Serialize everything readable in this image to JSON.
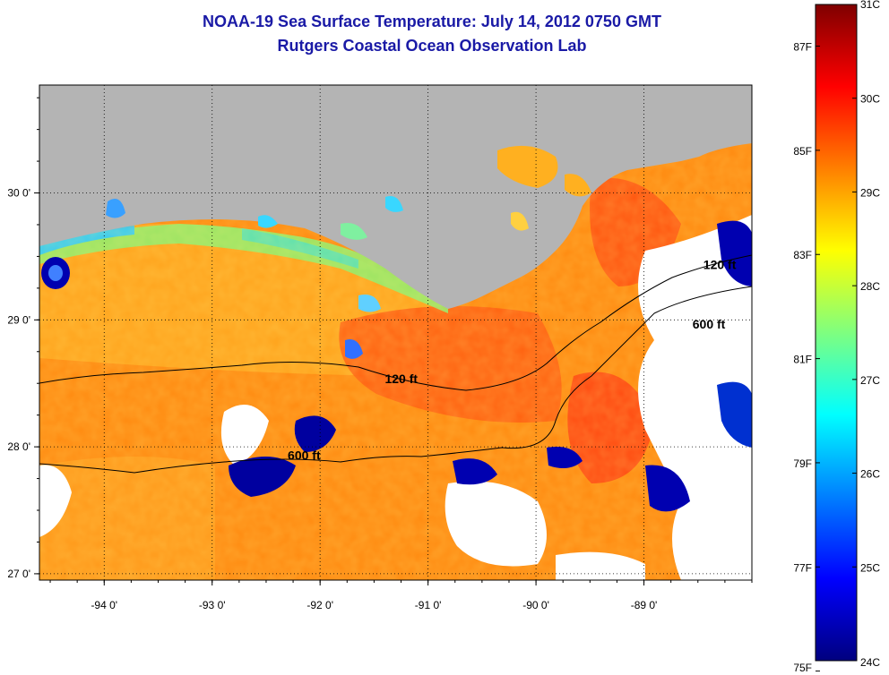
{
  "title": {
    "line1": "NOAA-19 Sea Surface Temperature:  July 14, 2012 0750 GMT",
    "line2": "Rutgers Coastal Ocean Observation Lab"
  },
  "axes": {
    "x_ticks": [
      {
        "value": -94,
        "label": "-94 0'"
      },
      {
        "value": -93,
        "label": "-93 0'"
      },
      {
        "value": -92,
        "label": "-92 0'"
      },
      {
        "value": -91,
        "label": "-91 0'"
      },
      {
        "value": -90,
        "label": "-90 0'"
      },
      {
        "value": -89,
        "label": "-89 0'"
      }
    ],
    "y_ticks": [
      {
        "value": 30,
        "label": "30 0'"
      },
      {
        "value": 29,
        "label": "29 0'"
      },
      {
        "value": 28,
        "label": "28 0'"
      },
      {
        "value": 27,
        "label": "27 0'"
      }
    ],
    "lon_range": [
      -94.6,
      -88.0
    ],
    "lat_range": [
      26.95,
      30.85
    ]
  },
  "contours": [
    {
      "label": "120 ft",
      "label_lon": -91.4,
      "label_lat": 28.5
    },
    {
      "label": "600 ft",
      "label_lon": -92.3,
      "label_lat": 27.9
    },
    {
      "label": "600 ft",
      "label_lon": -88.55,
      "label_lat": 28.93
    },
    {
      "label": "120 ft",
      "label_lon": -88.45,
      "label_lat": 29.4
    }
  ],
  "colorbar": {
    "celsius": [
      {
        "value": 31,
        "label": "31C"
      },
      {
        "value": 30,
        "label": "30C"
      },
      {
        "value": 29,
        "label": "29C"
      },
      {
        "value": 28,
        "label": "28C"
      },
      {
        "value": 27,
        "label": "27C"
      },
      {
        "value": 26,
        "label": "26C"
      },
      {
        "value": 25,
        "label": "25C"
      },
      {
        "value": 24,
        "label": "24C"
      }
    ],
    "fahrenheit": [
      {
        "value": 87,
        "label": "87F"
      },
      {
        "value": 85,
        "label": "85F"
      },
      {
        "value": 83,
        "label": "83F"
      },
      {
        "value": 81,
        "label": "81F"
      },
      {
        "value": 79,
        "label": "79F"
      },
      {
        "value": 77,
        "label": "77F"
      },
      {
        "value": 75,
        "label": "75F"
      }
    ],
    "range_c": [
      24,
      31
    ],
    "colors": [
      "#00007f",
      "#0000ff",
      "#007fff",
      "#00ffff",
      "#7fff7f",
      "#ffff00",
      "#ff7f00",
      "#ff0000",
      "#7f0000"
    ]
  },
  "colors": {
    "land": "#b4b4b4",
    "title": "#1a1aa6",
    "warm_water": "#ff8a10",
    "warmest_water": "#ff3a10",
    "cool_water": "#39d7ff",
    "cloud": "#ffffff"
  }
}
